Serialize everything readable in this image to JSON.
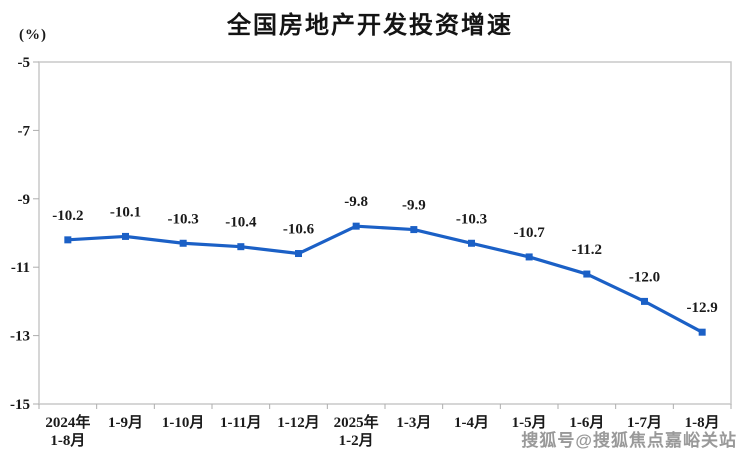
{
  "watermark": {
    "text": "搜狐号@搜狐焦点嘉峪关站"
  },
  "chart_data": {
    "type": "line",
    "title": "全国房地产开发投资增速",
    "ylabel": "(%)",
    "xlabel": "",
    "categories": [
      [
        "2024年",
        "1-8月"
      ],
      [
        "1-9月"
      ],
      [
        "1-10月"
      ],
      [
        "1-11月"
      ],
      [
        "1-12月"
      ],
      [
        "2025年",
        "1-2月"
      ],
      [
        "1-3月"
      ],
      [
        "1-4月"
      ],
      [
        "1-5月"
      ],
      [
        "1-6月"
      ],
      [
        "1-7月"
      ],
      [
        "1-8月"
      ]
    ],
    "series": [
      {
        "name": "全国房地产开发投资增速",
        "values": [
          -10.2,
          -10.1,
          -10.3,
          -10.4,
          -10.6,
          -9.8,
          -9.9,
          -10.3,
          -10.7,
          -11.2,
          -12.0,
          -12.9
        ],
        "data_labels": [
          "-10.2",
          "-10.1",
          "-10.3",
          "-10.4",
          "-10.6",
          "-9.8",
          "-9.9",
          "-10.3",
          "-10.7",
          "-11.2",
          "-12.0",
          "-12.9"
        ]
      }
    ],
    "ylim": [
      -15,
      -5
    ],
    "yticks": [
      -5,
      -7,
      -9,
      -11,
      -13,
      -15
    ],
    "ytick_labels": [
      "-5",
      "-7",
      "-9",
      "-11",
      "-13",
      "-15"
    ],
    "grid": false,
    "legend_position": "none",
    "marker_style": "square",
    "colors": {
      "line": "#1b60c6",
      "marker": "#1b60c6",
      "axis_text": "#1a1a1a",
      "data_label_text": "#1a1a1a",
      "plot_border": "#c9c9c9",
      "tick": "#adadad",
      "title_text": "#141414",
      "watermark_text": "#808080"
    }
  }
}
